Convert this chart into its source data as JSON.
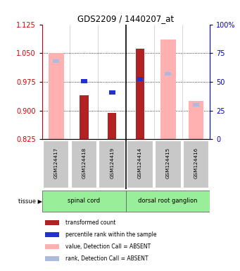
{
  "title": "GDS2209 / 1440207_at",
  "samples": [
    "GSM124417",
    "GSM124418",
    "GSM124419",
    "GSM124414",
    "GSM124415",
    "GSM124416"
  ],
  "ylim_left": [
    0.825,
    1.125
  ],
  "ylim_right": [
    0,
    100
  ],
  "yticks_left": [
    0.825,
    0.9,
    0.975,
    1.05,
    1.125
  ],
  "yticks_right": [
    0,
    25,
    50,
    75,
    100
  ],
  "red_bars": [
    null,
    0.94,
    0.893,
    1.062,
    null,
    null
  ],
  "pink_bars": [
    1.05,
    null,
    null,
    null,
    1.085,
    0.925
  ],
  "blue_sq_present": [
    false,
    true,
    true,
    true,
    false,
    false
  ],
  "blue_sq_val": [
    null,
    0.977,
    0.947,
    0.982,
    null,
    null
  ],
  "lblue_sq_present": [
    true,
    false,
    false,
    false,
    true,
    true
  ],
  "lblue_sq_rank": [
    68,
    null,
    null,
    null,
    57,
    30
  ],
  "red_color": "#B22222",
  "pink_color": "#FFB0B0",
  "blue_color": "#2233CC",
  "lblue_color": "#AABBDD",
  "left_axis_color": "#CC0000",
  "right_axis_color": "#0000BB",
  "tissue_green": "#99EE99",
  "tissue_groups": [
    [
      0,
      2,
      "spinal cord"
    ],
    [
      3,
      5,
      "dorsal root ganglion"
    ]
  ]
}
